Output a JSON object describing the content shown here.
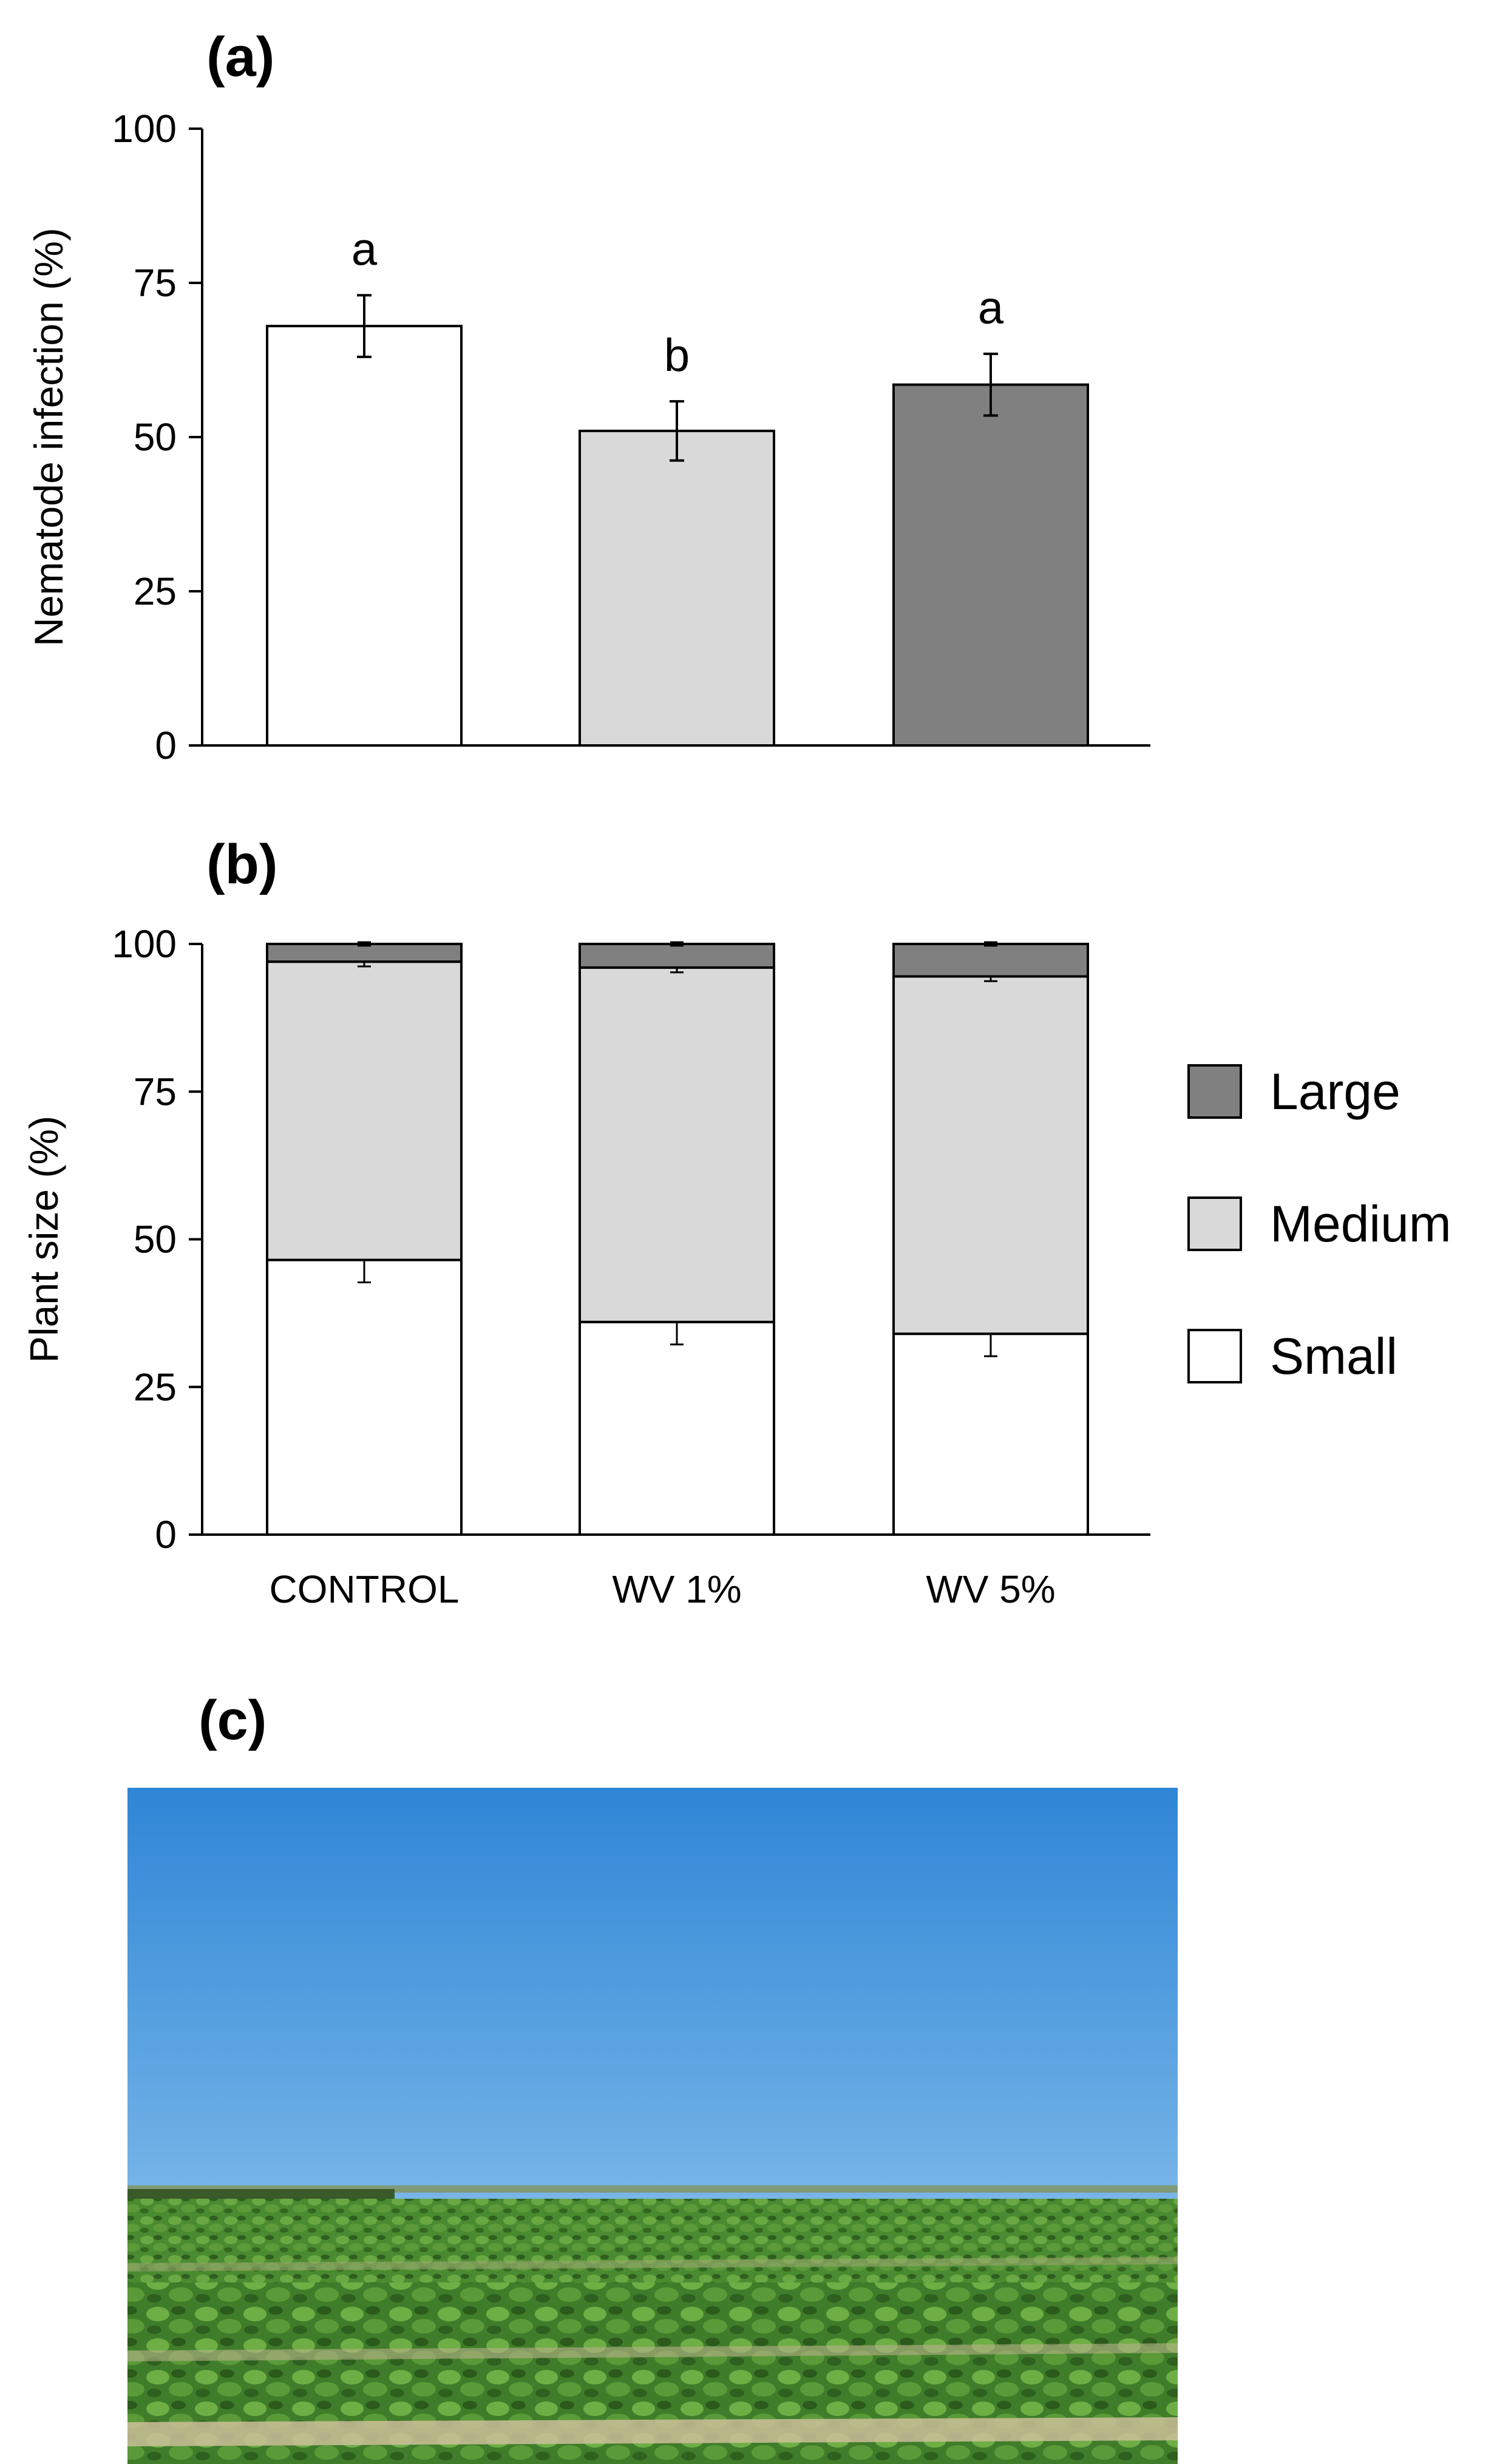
{
  "panels": {
    "a": "(a)",
    "b": "(b)",
    "c": "(c)"
  },
  "colors": {
    "control": "#ffffff",
    "wv1": "#d9d9d9",
    "wv5": "#808080",
    "small": "#ffffff",
    "medium": "#d9d9d9",
    "large": "#808080",
    "outline": "#000000"
  },
  "chart_data": [
    {
      "type": "bar",
      "panel": "(a)",
      "ylabel": "Nematode infection (%)",
      "ylim": [
        0,
        100
      ],
      "yticks": [
        0,
        25,
        50,
        75,
        100
      ],
      "categories": [
        "CONTROL",
        "WV 1%",
        "WV 5%"
      ],
      "values": [
        68,
        51,
        58.5
      ],
      "errors": [
        5,
        4.8,
        5
      ],
      "significance": [
        "a",
        "b",
        "a"
      ],
      "bar_colors": [
        "#ffffff",
        "#d9d9d9",
        "#808080"
      ]
    },
    {
      "type": "bar",
      "stacked": true,
      "panel": "(b)",
      "ylabel": "Plant size (%)",
      "ylim": [
        0,
        100
      ],
      "yticks": [
        0,
        25,
        50,
        75,
        100
      ],
      "categories": [
        "CONTROL",
        "WV 1%",
        "WV 5%"
      ],
      "series": [
        {
          "name": "Small",
          "color": "#ffffff",
          "values": [
            46.5,
            36,
            34
          ],
          "errors": [
            3.8,
            3.8,
            3.8
          ]
        },
        {
          "name": "Medium",
          "color": "#d9d9d9",
          "values": [
            50.5,
            60,
            60.5
          ],
          "errors": [
            0.8,
            0.8,
            0.8
          ]
        },
        {
          "name": "Large",
          "color": "#808080",
          "values": [
            3,
            4,
            5.5
          ],
          "errors": [
            0.3,
            0.3,
            0.3
          ]
        }
      ],
      "legend": [
        "Large",
        "Medium",
        "Small"
      ],
      "legend_position": "right"
    }
  ],
  "photo": {
    "subject": "soybean field under blue sky"
  }
}
